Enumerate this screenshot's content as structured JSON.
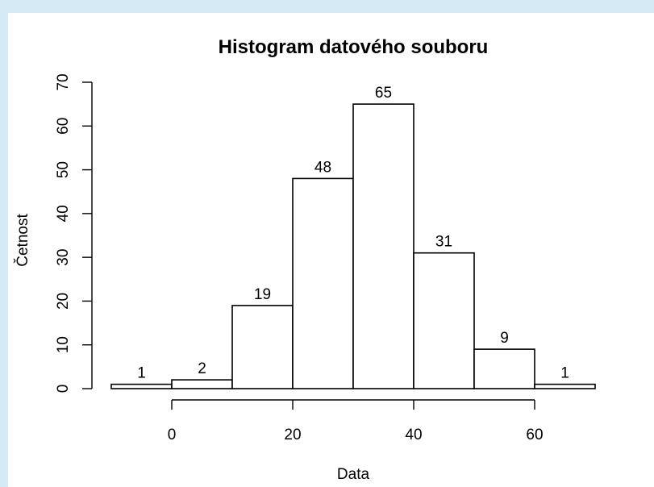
{
  "chart_data": {
    "type": "bar",
    "subtype": "histogram",
    "title": "Histogram datového souboru",
    "xlabel": "Data",
    "ylabel": "Četnost",
    "bins": [
      {
        "start": -10,
        "end": 0,
        "count": 1
      },
      {
        "start": 0,
        "end": 10,
        "count": 2
      },
      {
        "start": 10,
        "end": 20,
        "count": 19
      },
      {
        "start": 20,
        "end": 30,
        "count": 48
      },
      {
        "start": 30,
        "end": 40,
        "count": 65
      },
      {
        "start": 40,
        "end": 50,
        "count": 31
      },
      {
        "start": 50,
        "end": 60,
        "count": 9
      },
      {
        "start": 60,
        "end": 70,
        "count": 1
      }
    ],
    "data_labels": [
      "1",
      "2",
      "19",
      "48",
      "65",
      "31",
      "9",
      "1"
    ],
    "x_ticks": [
      0,
      20,
      40,
      60
    ],
    "x_tick_labels": [
      "0",
      "20",
      "40",
      "60"
    ],
    "y_ticks": [
      0,
      10,
      20,
      30,
      40,
      50,
      60,
      70
    ],
    "y_tick_labels": [
      "0",
      "10",
      "20",
      "30",
      "40",
      "50",
      "60",
      "70"
    ],
    "xlim": [
      -10,
      70
    ],
    "ylim": [
      0,
      70
    ],
    "grid": false,
    "legend": "none",
    "colors": {
      "bar_fill": "#ffffff",
      "bar_stroke": "#000000",
      "background": "#d6eaf5"
    }
  }
}
